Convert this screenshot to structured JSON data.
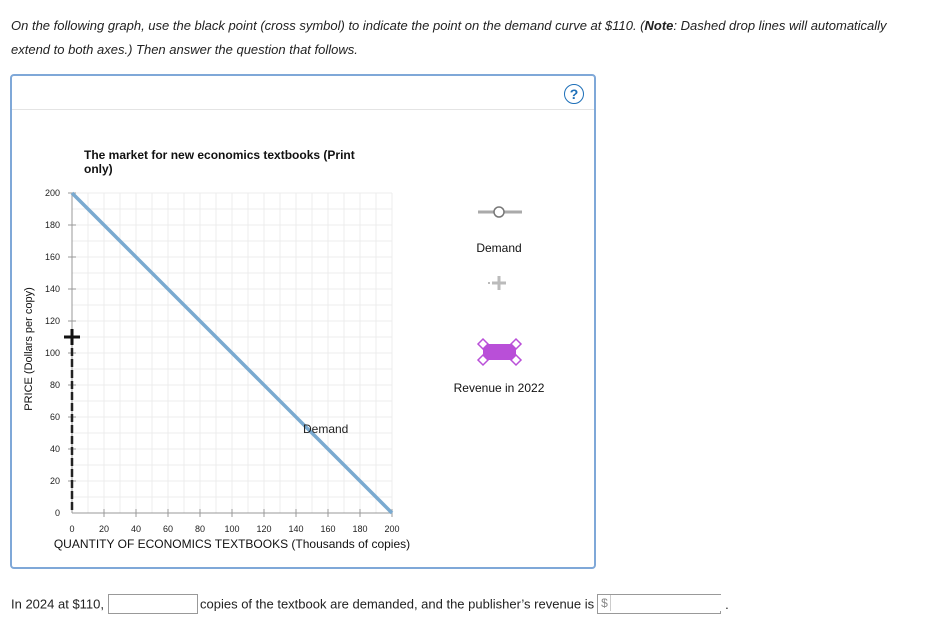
{
  "instructions": {
    "part1": "On the following graph, use the black point (cross symbol) to indicate the point on the demand curve at $110. (",
    "note_label": "Note",
    "part2": ": Dashed drop lines will automatically extend to both axes.) Then answer the question that follows."
  },
  "graph": {
    "help_label": "?",
    "legend": {
      "demand_label": "Demand",
      "revenue_label": "Revenue in 2022"
    }
  },
  "chart_data": {
    "type": "line",
    "title": "The market for new economics textbooks (Print only)",
    "xlabel": "QUANTITY OF ECONOMICS TEXTBOOKS (Thousands of copies)",
    "ylabel": "PRICE (Dollars per copy)",
    "xlim": [
      0,
      200
    ],
    "ylim": [
      0,
      200
    ],
    "xticks": [
      0,
      20,
      40,
      60,
      80,
      100,
      120,
      140,
      160,
      180,
      200
    ],
    "yticks": [
      0,
      20,
      40,
      60,
      80,
      100,
      120,
      140,
      160,
      180,
      200
    ],
    "grid": true,
    "series": [
      {
        "name": "Demand",
        "x": [
          0,
          200
        ],
        "y": [
          200,
          0
        ],
        "color": "#7aaad0"
      }
    ],
    "placed_point": {
      "x": 0,
      "y": 110
    },
    "curve_label": "Demand"
  },
  "question": {
    "prefix": "In 2024 at $110,",
    "middle": "copies of the textbook are demanded, and the publisher’s revenue is",
    "currency": "$",
    "suffix": ".",
    "quantity_value": "",
    "revenue_value": ""
  }
}
